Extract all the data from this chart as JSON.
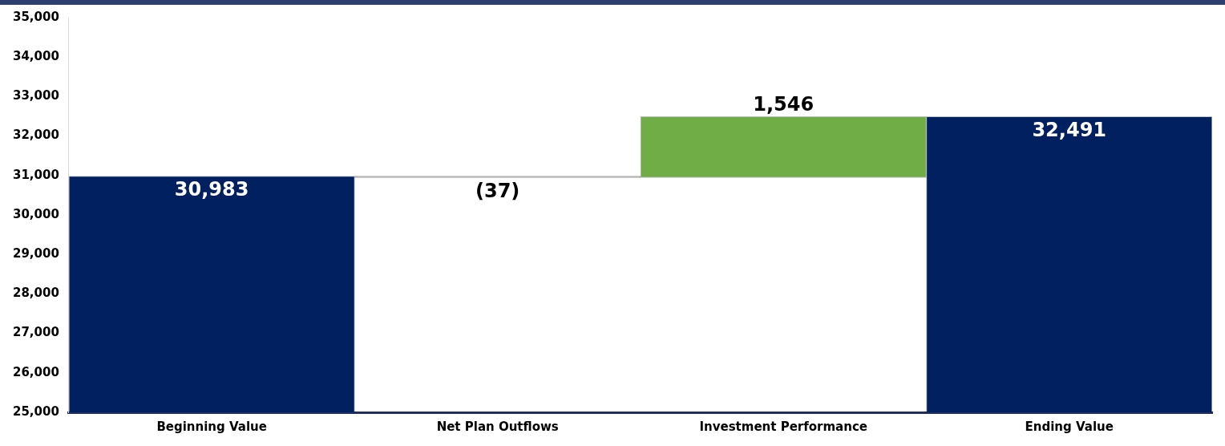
{
  "chart_data": {
    "type": "bar",
    "categories": [
      "Beginning Value",
      "Net Plan Outflows",
      "Investment Performance",
      "Ending Value"
    ],
    "values": [
      30983,
      -37,
      1546,
      32491
    ],
    "base": [
      0,
      30983,
      30946,
      0
    ],
    "colors": [
      "#002060",
      "#a6a6a6",
      "#70ad47",
      "#002060"
    ],
    "value_labels": [
      "30,983",
      "(37)",
      "1,546",
      "32,491"
    ],
    "ylim": [
      25000,
      35000
    ],
    "yticks": [
      {
        "value": 25000,
        "label": "25,000"
      },
      {
        "value": 26000,
        "label": "26,000"
      },
      {
        "value": 27000,
        "label": "27,000"
      },
      {
        "value": 28000,
        "label": "28,000"
      },
      {
        "value": 29000,
        "label": "29,000"
      },
      {
        "value": 30000,
        "label": "30,000"
      },
      {
        "value": 31000,
        "label": "31,000"
      },
      {
        "value": 32000,
        "label": "32,000"
      },
      {
        "value": 33000,
        "label": "33,000"
      },
      {
        "value": 34000,
        "label": "34,000"
      },
      {
        "value": 35000,
        "label": "35,000"
      }
    ],
    "grid": false,
    "legend": false
  }
}
